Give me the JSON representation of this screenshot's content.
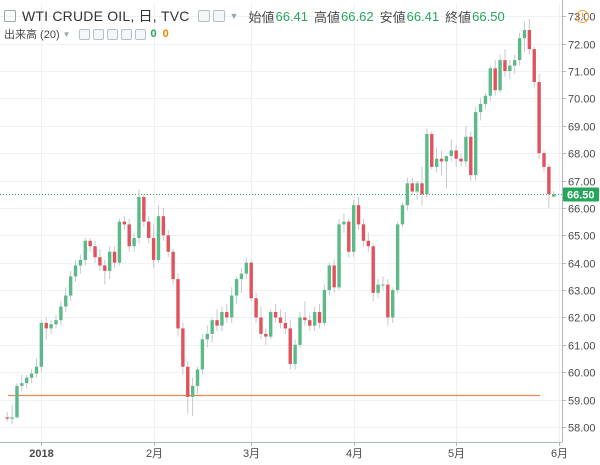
{
  "legend": {
    "symbol": "WTI CRUDE OIL, 日, TVC",
    "open_label": "始値",
    "open_value": "66.41",
    "high_label": "高値",
    "high_value": "66.62",
    "low_label": "安値",
    "low_value": "66.41",
    "close_label": "終値",
    "close_value": "66.50"
  },
  "study": {
    "label": "出来高 (20)",
    "value1": "0",
    "value2": "0"
  },
  "warning_glyph": "!",
  "colors": {
    "up": "#5cb988",
    "down": "#e0535d",
    "price_line": "#26a65b",
    "support_line": "#e58a57"
  },
  "chart_data": {
    "type": "candlestick",
    "y_ticks": [
      58,
      59,
      60,
      61,
      62,
      63,
      64,
      65,
      66,
      67,
      68,
      69,
      70,
      71,
      72,
      73
    ],
    "ylim": [
      57.45,
      73.45
    ],
    "x_ticks": [
      {
        "index": 7,
        "label": "2018"
      },
      {
        "index": 30,
        "label": "2月"
      },
      {
        "index": 50,
        "label": "3月"
      },
      {
        "index": 71,
        "label": "4月"
      },
      {
        "index": 92,
        "label": "5月"
      },
      {
        "index": 113,
        "label": "6月"
      }
    ],
    "last_price": 66.5,
    "last_price_label": "66.50",
    "support_level": 59.15,
    "ohlc": [
      [
        58.35,
        58.55,
        58.2,
        58.3
      ],
      [
        58.3,
        58.8,
        58.1,
        58.35
      ],
      [
        58.35,
        59.6,
        58.3,
        59.5
      ],
      [
        59.5,
        59.9,
        59.3,
        59.6
      ],
      [
        59.6,
        59.9,
        59.4,
        59.8
      ],
      [
        59.8,
        60.1,
        59.6,
        59.95
      ],
      [
        59.95,
        60.5,
        59.8,
        60.2
      ],
      [
        60.2,
        61.9,
        60.0,
        61.8
      ],
      [
        61.8,
        62.0,
        61.2,
        61.6
      ],
      [
        61.6,
        61.9,
        61.4,
        61.75
      ],
      [
        61.75,
        62.1,
        61.6,
        61.9
      ],
      [
        61.9,
        62.6,
        61.7,
        62.4
      ],
      [
        62.4,
        63.1,
        62.2,
        62.8
      ],
      [
        62.8,
        63.7,
        62.6,
        63.5
      ],
      [
        63.5,
        64.1,
        63.3,
        63.9
      ],
      [
        63.9,
        64.3,
        63.6,
        64.1
      ],
      [
        64.1,
        64.9,
        63.9,
        64.8
      ],
      [
        64.8,
        64.9,
        64.4,
        64.6
      ],
      [
        64.6,
        64.8,
        64.0,
        64.2
      ],
      [
        64.2,
        64.5,
        63.7,
        63.9
      ],
      [
        63.9,
        64.1,
        63.2,
        63.7
      ],
      [
        63.7,
        64.6,
        63.4,
        64.4
      ],
      [
        64.4,
        64.6,
        63.8,
        64.0
      ],
      [
        64.0,
        65.6,
        63.9,
        65.5
      ],
      [
        65.5,
        65.7,
        65.2,
        65.4
      ],
      [
        65.4,
        65.6,
        64.4,
        64.6
      ],
      [
        64.6,
        65.1,
        64.4,
        64.9
      ],
      [
        64.9,
        66.7,
        64.7,
        66.4
      ],
      [
        66.4,
        66.5,
        65.3,
        65.5
      ],
      [
        65.5,
        65.7,
        64.7,
        64.9
      ],
      [
        64.9,
        65.4,
        63.8,
        64.1
      ],
      [
        64.1,
        66.1,
        64.0,
        65.7
      ],
      [
        65.7,
        66.0,
        64.8,
        65.0
      ],
      [
        65.0,
        65.2,
        64.2,
        64.4
      ],
      [
        64.4,
        64.5,
        63.2,
        63.4
      ],
      [
        63.4,
        63.6,
        61.3,
        61.6
      ],
      [
        61.6,
        61.8,
        59.9,
        60.2
      ],
      [
        60.2,
        60.4,
        58.5,
        59.1
      ],
      [
        59.1,
        59.8,
        58.4,
        59.5
      ],
      [
        59.5,
        60.2,
        59.2,
        60.1
      ],
      [
        60.1,
        61.4,
        59.9,
        61.2
      ],
      [
        61.2,
        61.7,
        60.9,
        61.4
      ],
      [
        61.4,
        62.0,
        61.1,
        61.9
      ],
      [
        61.9,
        62.3,
        61.5,
        61.7
      ],
      [
        61.7,
        62.4,
        61.5,
        62.2
      ],
      [
        62.2,
        62.5,
        61.8,
        62.0
      ],
      [
        62.0,
        63.1,
        61.8,
        62.8
      ],
      [
        62.8,
        63.5,
        62.5,
        63.4
      ],
      [
        63.4,
        63.8,
        62.9,
        63.6
      ],
      [
        63.6,
        64.2,
        63.4,
        64.0
      ],
      [
        64.0,
        64.1,
        62.6,
        62.7
      ],
      [
        62.7,
        62.9,
        61.8,
        62.0
      ],
      [
        62.0,
        62.4,
        61.2,
        61.4
      ],
      [
        61.4,
        61.6,
        61.0,
        61.3
      ],
      [
        61.3,
        62.3,
        61.2,
        62.2
      ],
      [
        62.2,
        62.5,
        61.8,
        62.0
      ],
      [
        62.0,
        62.3,
        61.6,
        61.8
      ],
      [
        61.8,
        62.2,
        61.4,
        61.6
      ],
      [
        61.6,
        61.9,
        60.1,
        60.3
      ],
      [
        60.3,
        61.2,
        60.1,
        61.0
      ],
      [
        61.0,
        62.2,
        60.9,
        62.0
      ],
      [
        62.0,
        62.6,
        61.7,
        61.9
      ],
      [
        61.9,
        62.1,
        61.5,
        61.7
      ],
      [
        61.7,
        62.4,
        61.5,
        62.2
      ],
      [
        62.2,
        62.5,
        61.6,
        61.8
      ],
      [
        61.8,
        63.2,
        61.7,
        63.0
      ],
      [
        63.0,
        64.0,
        62.8,
        63.9
      ],
      [
        63.9,
        64.1,
        62.9,
        63.1
      ],
      [
        63.1,
        65.6,
        63.0,
        65.4
      ],
      [
        65.4,
        65.8,
        65.1,
        65.5
      ],
      [
        65.5,
        65.6,
        64.2,
        64.4
      ],
      [
        64.4,
        66.3,
        64.2,
        66.1
      ],
      [
        66.1,
        66.4,
        65.2,
        65.4
      ],
      [
        65.4,
        65.6,
        64.6,
        64.8
      ],
      [
        64.8,
        65.1,
        64.4,
        64.6
      ],
      [
        64.6,
        64.7,
        62.6,
        62.9
      ],
      [
        62.9,
        63.4,
        62.7,
        63.2
      ],
      [
        63.2,
        63.5,
        63.0,
        63.2
      ],
      [
        63.2,
        63.4,
        61.7,
        62.0
      ],
      [
        62.0,
        63.1,
        61.8,
        63.0
      ],
      [
        63.0,
        65.5,
        62.9,
        65.4
      ],
      [
        65.4,
        66.2,
        65.3,
        66.1
      ],
      [
        66.1,
        67.1,
        65.9,
        66.9
      ],
      [
        66.9,
        67.1,
        66.5,
        66.6
      ],
      [
        66.6,
        67.0,
        66.3,
        66.9
      ],
      [
        66.9,
        67.5,
        66.1,
        66.5
      ],
      [
        66.5,
        68.9,
        66.4,
        68.7
      ],
      [
        68.7,
        68.8,
        67.4,
        67.5
      ],
      [
        67.5,
        68.2,
        67.3,
        67.8
      ],
      [
        67.8,
        68.1,
        67.2,
        67.7
      ],
      [
        67.7,
        67.9,
        66.7,
        67.9
      ],
      [
        67.9,
        68.5,
        67.7,
        68.1
      ],
      [
        68.1,
        68.3,
        67.5,
        67.8
      ],
      [
        67.8,
        68.0,
        67.5,
        67.7
      ],
      [
        67.7,
        69.0,
        67.5,
        68.6
      ],
      [
        68.6,
        68.8,
        67.0,
        67.2
      ],
      [
        67.2,
        69.7,
        67.0,
        69.5
      ],
      [
        69.5,
        70.0,
        69.2,
        69.8
      ],
      [
        69.8,
        70.2,
        69.6,
        70.1
      ],
      [
        70.1,
        71.2,
        69.9,
        71.1
      ],
      [
        71.1,
        71.4,
        70.1,
        70.3
      ],
      [
        70.3,
        71.6,
        70.2,
        71.4
      ],
      [
        71.4,
        71.8,
        70.8,
        71.0
      ],
      [
        71.0,
        71.4,
        70.7,
        71.2
      ],
      [
        71.2,
        71.6,
        70.9,
        71.4
      ],
      [
        71.4,
        72.4,
        71.2,
        72.2
      ],
      [
        72.2,
        72.8,
        71.7,
        72.5
      ],
      [
        72.5,
        72.9,
        71.6,
        71.8
      ],
      [
        71.8,
        71.9,
        70.4,
        70.6
      ],
      [
        70.6,
        70.9,
        67.8,
        68.0
      ],
      [
        68.0,
        68.1,
        67.3,
        67.5
      ],
      [
        67.5,
        67.6,
        66.0,
        66.5
      ],
      [
        66.41,
        66.62,
        66.41,
        66.5
      ]
    ]
  }
}
